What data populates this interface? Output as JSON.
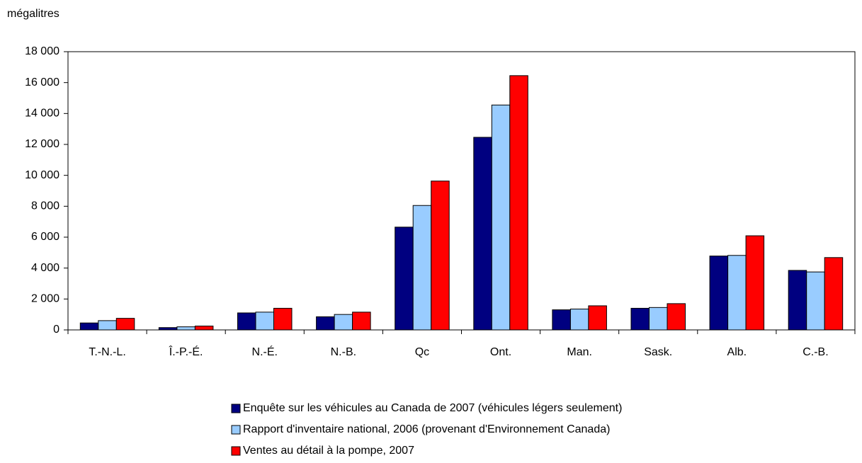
{
  "chart_data": {
    "type": "bar",
    "y_axis_label": "mégalitres",
    "categories": [
      "T.-N.-L.",
      "Î.-P.-É.",
      "N.-É.",
      "N.-B.",
      "Qc",
      "Ont.",
      "Man.",
      "Sask.",
      "Alb.",
      "C.-B."
    ],
    "series": [
      {
        "name": "Enquête sur les véhicules au Canada de 2007 (véhicules légers seulement)",
        "color": "#000080",
        "values": [
          450,
          150,
          1100,
          850,
          6650,
          12460,
          1300,
          1400,
          4780,
          3850
        ]
      },
      {
        "name": "Rapport d'inventaire national, 2006 (provenant d'Environnement Canada)",
        "color": "#99ccff",
        "values": [
          600,
          200,
          1150,
          1000,
          8050,
          14550,
          1350,
          1450,
          4820,
          3750
        ]
      },
      {
        "name": "Ventes au détail à la pompe, 2007",
        "color": "#ff0000",
        "values": [
          750,
          250,
          1400,
          1150,
          9630,
          16450,
          1560,
          1700,
          6090,
          4680
        ]
      }
    ],
    "ylim": [
      0,
      18000
    ],
    "yticks": [
      0,
      {
        "value": 2000,
        "label": "2 000"
      },
      {
        "value": 4000,
        "label": "4 000"
      },
      {
        "value": 6000,
        "label": "6 000"
      },
      {
        "value": 8000,
        "label": "8 000"
      },
      {
        "value": 10000,
        "label": "10 000"
      },
      {
        "value": 12000,
        "label": "12 000"
      },
      {
        "value": 14000,
        "label": "14 000"
      },
      {
        "value": 16000,
        "label": "16 000"
      },
      {
        "value": 18000,
        "label": "18 000"
      }
    ],
    "grid": false,
    "legend": "bottom"
  }
}
